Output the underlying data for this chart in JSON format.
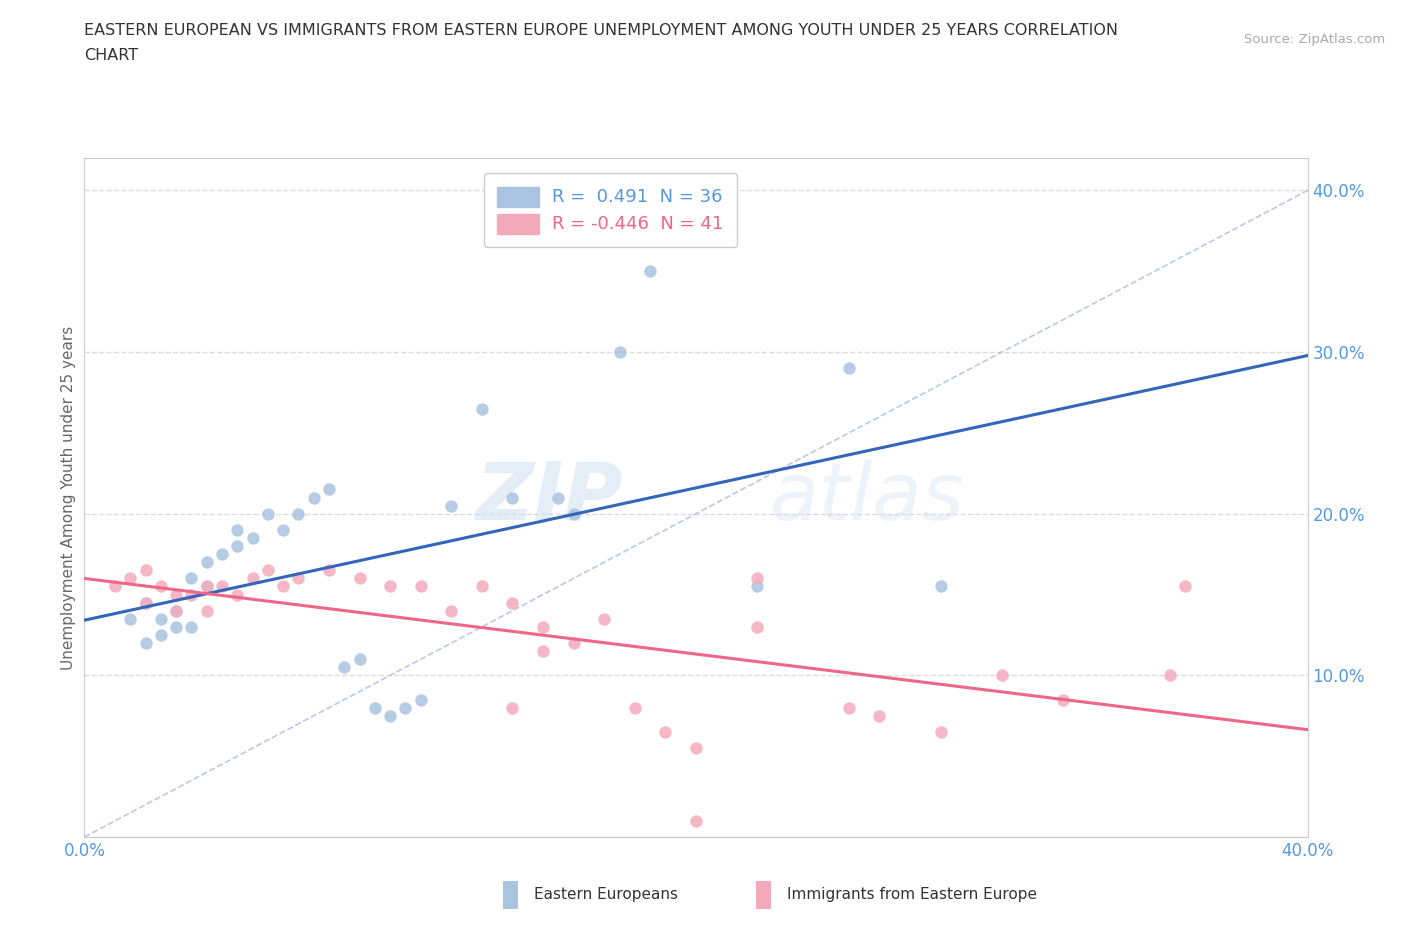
{
  "title_line1": "EASTERN EUROPEAN VS IMMIGRANTS FROM EASTERN EUROPE UNEMPLOYMENT AMONG YOUTH UNDER 25 YEARS CORRELATION",
  "title_line2": "CHART",
  "source_text": "Source: ZipAtlas.com",
  "ylabel": "Unemployment Among Youth under 25 years",
  "xlim": [
    0.0,
    0.4
  ],
  "ylim": [
    0.0,
    0.42
  ],
  "x_ticks": [
    0.0,
    0.1,
    0.2,
    0.3,
    0.4
  ],
  "y_ticks": [
    0.0,
    0.1,
    0.2,
    0.3,
    0.4
  ],
  "blue_color": "#A8C4E0",
  "pink_color": "#F4AABB",
  "blue_line_color": "#3366BB",
  "pink_line_color": "#EE6688",
  "tick_color": "#5599DD",
  "blue_scatter": [
    [
      0.02,
      0.145
    ],
    [
      0.025,
      0.135
    ],
    [
      0.03,
      0.14
    ],
    [
      0.035,
      0.16
    ],
    [
      0.04,
      0.17
    ],
    [
      0.04,
      0.155
    ],
    [
      0.045,
      0.175
    ],
    [
      0.05,
      0.19
    ],
    [
      0.05,
      0.18
    ],
    [
      0.055,
      0.185
    ],
    [
      0.06,
      0.2
    ],
    [
      0.065,
      0.19
    ],
    [
      0.07,
      0.2
    ],
    [
      0.075,
      0.21
    ],
    [
      0.08,
      0.215
    ],
    [
      0.085,
      0.105
    ],
    [
      0.09,
      0.11
    ],
    [
      0.095,
      0.08
    ],
    [
      0.1,
      0.075
    ],
    [
      0.105,
      0.08
    ],
    [
      0.11,
      0.085
    ],
    [
      0.12,
      0.205
    ],
    [
      0.13,
      0.265
    ],
    [
      0.14,
      0.21
    ],
    [
      0.155,
      0.21
    ],
    [
      0.16,
      0.2
    ],
    [
      0.175,
      0.3
    ],
    [
      0.185,
      0.35
    ],
    [
      0.22,
      0.155
    ],
    [
      0.25,
      0.29
    ],
    [
      0.28,
      0.155
    ],
    [
      0.015,
      0.135
    ],
    [
      0.02,
      0.12
    ],
    [
      0.025,
      0.125
    ],
    [
      0.03,
      0.13
    ],
    [
      0.035,
      0.13
    ]
  ],
  "pink_scatter": [
    [
      0.01,
      0.155
    ],
    [
      0.015,
      0.16
    ],
    [
      0.02,
      0.165
    ],
    [
      0.02,
      0.145
    ],
    [
      0.025,
      0.155
    ],
    [
      0.03,
      0.15
    ],
    [
      0.03,
      0.14
    ],
    [
      0.035,
      0.15
    ],
    [
      0.04,
      0.155
    ],
    [
      0.04,
      0.14
    ],
    [
      0.045,
      0.155
    ],
    [
      0.05,
      0.15
    ],
    [
      0.055,
      0.16
    ],
    [
      0.06,
      0.165
    ],
    [
      0.065,
      0.155
    ],
    [
      0.07,
      0.16
    ],
    [
      0.08,
      0.165
    ],
    [
      0.09,
      0.16
    ],
    [
      0.1,
      0.155
    ],
    [
      0.11,
      0.155
    ],
    [
      0.12,
      0.14
    ],
    [
      0.13,
      0.155
    ],
    [
      0.14,
      0.145
    ],
    [
      0.15,
      0.13
    ],
    [
      0.16,
      0.12
    ],
    [
      0.17,
      0.135
    ],
    [
      0.19,
      0.065
    ],
    [
      0.2,
      0.055
    ],
    [
      0.22,
      0.16
    ],
    [
      0.25,
      0.08
    ],
    [
      0.26,
      0.075
    ],
    [
      0.28,
      0.065
    ],
    [
      0.3,
      0.1
    ],
    [
      0.32,
      0.085
    ],
    [
      0.355,
      0.1
    ],
    [
      0.36,
      0.155
    ],
    [
      0.2,
      0.01
    ],
    [
      0.22,
      0.13
    ],
    [
      0.18,
      0.08
    ],
    [
      0.15,
      0.115
    ],
    [
      0.14,
      0.08
    ]
  ],
  "watermark_zip": "ZIP",
  "watermark_atlas": "atlas",
  "background_color": "#FFFFFF",
  "grid_color": "#DDDDDD"
}
